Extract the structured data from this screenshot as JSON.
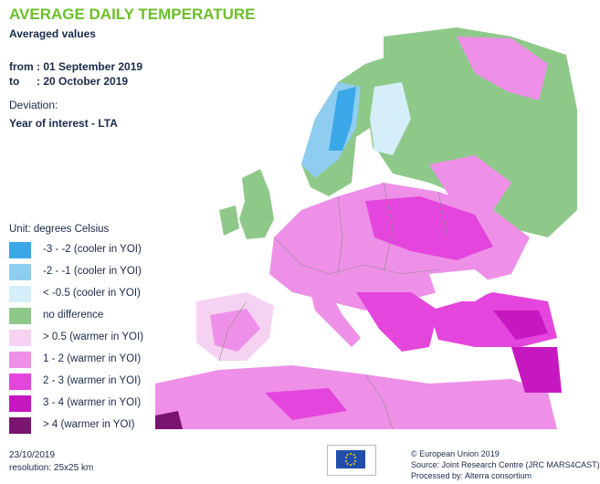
{
  "header": {
    "title": "AVERAGE DAILY TEMPERATURE",
    "subtitle": "Averaged values",
    "from_label": "from",
    "from_value": ": 01 September 2019",
    "to_label": "to",
    "to_value": ": 20 October 2019",
    "deviation_label": "Deviation:",
    "deviation_value": "Year of interest - LTA"
  },
  "legend": {
    "unit": "Unit: degrees Celsius",
    "items": [
      {
        "label": "-3 - -2  (cooler in YOI)",
        "color": "#3aa8e8"
      },
      {
        "label": "-2 - -1  (cooler in YOI)",
        "color": "#8fcdf0"
      },
      {
        "label": "< -0.5  (cooler in YOI)",
        "color": "#d6eefa"
      },
      {
        "label": "no difference",
        "color": "#8ec98a"
      },
      {
        "label": "> 0.5  (warmer in YOI)",
        "color": "#f6d2f2"
      },
      {
        "label": "1 - 2  (warmer in YOI)",
        "color": "#ef90e8"
      },
      {
        "label": "2 - 3  (warmer in YOI)",
        "color": "#e445dc"
      },
      {
        "label": "3 - 4  (warmer in YOI)",
        "color": "#c618c0"
      },
      {
        "label": "> 4  (warmer in YOI)",
        "color": "#7a1470"
      }
    ]
  },
  "footer": {
    "date": "23/10/2019",
    "resolution": "resolution:  25x25 km",
    "copyright": "© European Union 2019",
    "source": "Source: Joint Research Centre (JRC MARS4CAST)",
    "processed": "Processed by: Alterra consortium"
  },
  "colors": {
    "sea": "#ffffff",
    "border": "#8a8a8a"
  }
}
